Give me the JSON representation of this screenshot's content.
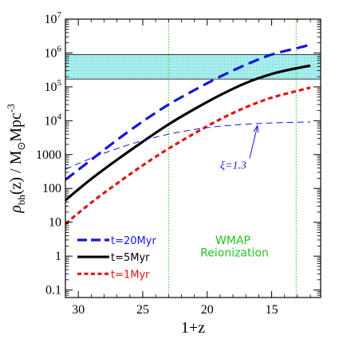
{
  "chart_data": {
    "type": "line",
    "xlabel": "1+z",
    "ylabel_parts": {
      "rho": "ρ",
      "sub": "bh",
      "mid": "(z) / M",
      "sun": "⊙",
      "mpc": "Mpc",
      "exp": "-3"
    },
    "xlim": [
      31,
      11.2
    ],
    "ylim": [
      0.06,
      10000000
    ],
    "yscale": "log",
    "xticks": [
      30,
      25,
      20,
      15
    ],
    "xtick_labels": [
      "30",
      "25",
      "20",
      "15"
    ],
    "yticks": [
      {
        "value": 0.1,
        "label": "0.1"
      },
      {
        "value": 1,
        "label": "1"
      },
      {
        "value": 10,
        "label": "10"
      },
      {
        "value": 100,
        "label": "100"
      },
      {
        "value": 1000,
        "label": "1000"
      },
      {
        "value": 10000,
        "base": "10",
        "exp": "4"
      },
      {
        "value": 100000,
        "base": "10",
        "exp": "5"
      },
      {
        "value": 1000000,
        "base": "10",
        "exp": "6"
      },
      {
        "value": 10000000,
        "base": "10",
        "exp": "7"
      }
    ],
    "wmap_band": {
      "y_range": [
        170000,
        900000
      ],
      "color": "#aef0f0"
    },
    "reionization_lines": {
      "x": [
        23,
        13.1
      ],
      "color": "#22c422"
    },
    "series": [
      {
        "name": "t=20Myr",
        "color": "#1515e0",
        "style": "long-dash",
        "x": [
          31,
          29,
          27,
          25,
          23,
          21,
          19,
          17,
          15,
          13,
          12
        ],
        "y": [
          180,
          700,
          2700,
          9500,
          30000,
          80000,
          200000,
          450000,
          900000,
          1400000,
          1750000
        ]
      },
      {
        "name": "t=5Myr",
        "color": "#000000",
        "style": "solid",
        "x": [
          31,
          29,
          27,
          25,
          23,
          21,
          19,
          17,
          15,
          13,
          12
        ],
        "y": [
          45,
          190,
          700,
          2400,
          7800,
          22000,
          57000,
          130000,
          240000,
          360000,
          420000
        ]
      },
      {
        "name": "t=1Myr",
        "color": "#e01515",
        "style": "short-dash",
        "x": [
          31,
          29,
          27,
          25,
          23,
          21,
          19,
          17,
          15,
          13,
          12
        ],
        "y": [
          9,
          38,
          140,
          480,
          1500,
          4200,
          11000,
          25000,
          48000,
          76000,
          95000
        ]
      },
      {
        "name": "",
        "color": "#1515e0",
        "style": "thin-dash",
        "x": [
          31,
          29,
          27,
          25,
          23,
          21,
          19,
          17,
          15,
          13,
          12
        ],
        "y": [
          370,
          780,
          1500,
          2600,
          4000,
          5500,
          6900,
          7900,
          8600,
          9000,
          9200
        ]
      }
    ],
    "legend": [
      {
        "label": "t=20Myr",
        "color": "#1515e0",
        "style": "long-dash"
      },
      {
        "label": "t=5Myr",
        "color": "#000000",
        "style": "solid"
      },
      {
        "label": "t=1Myr",
        "color": "#e01515",
        "style": "short-dash"
      }
    ],
    "annotations": {
      "wmap": "WMAP",
      "reionization": "Reionization",
      "xi": "ξ=1.3",
      "xi_arrow_tip": {
        "x": 16.1,
        "y": 8400
      }
    }
  }
}
